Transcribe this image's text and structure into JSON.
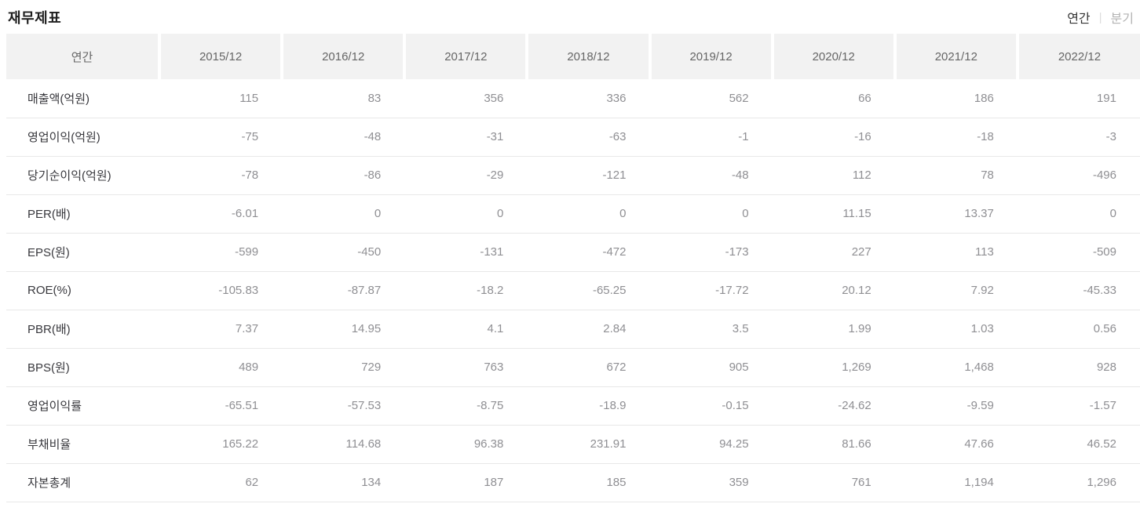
{
  "page": {
    "title": "재무제표"
  },
  "toggle": {
    "annual_label": "연간",
    "quarterly_label": "분기",
    "separator": "|",
    "active": "연간"
  },
  "colors": {
    "header_bg": "#f2f2f2",
    "header_text": "#666666",
    "label_text": "#38383d",
    "value_text": "#8f8f93",
    "row_border": "#e8e8e8",
    "toggle_active": "#333333",
    "toggle_inactive": "#b3b3b3"
  },
  "table": {
    "header": [
      "연간",
      "2015/12",
      "2016/12",
      "2017/12",
      "2018/12",
      "2019/12",
      "2020/12",
      "2021/12",
      "2022/12"
    ],
    "rows": [
      {
        "label": "매출액(억원)",
        "values": [
          "115",
          "83",
          "356",
          "336",
          "562",
          "66",
          "186",
          "191"
        ]
      },
      {
        "label": "영업이익(억원)",
        "values": [
          "-75",
          "-48",
          "-31",
          "-63",
          "-1",
          "-16",
          "-18",
          "-3"
        ]
      },
      {
        "label": "당기순이익(억원)",
        "values": [
          "-78",
          "-86",
          "-29",
          "-121",
          "-48",
          "112",
          "78",
          "-496"
        ]
      },
      {
        "label": "PER(배)",
        "values": [
          "-6.01",
          "0",
          "0",
          "0",
          "0",
          "11.15",
          "13.37",
          "0"
        ]
      },
      {
        "label": "EPS(원)",
        "values": [
          "-599",
          "-450",
          "-131",
          "-472",
          "-173",
          "227",
          "113",
          "-509"
        ]
      },
      {
        "label": "ROE(%)",
        "values": [
          "-105.83",
          "-87.87",
          "-18.2",
          "-65.25",
          "-17.72",
          "20.12",
          "7.92",
          "-45.33"
        ]
      },
      {
        "label": "PBR(배)",
        "values": [
          "7.37",
          "14.95",
          "4.1",
          "2.84",
          "3.5",
          "1.99",
          "1.03",
          "0.56"
        ]
      },
      {
        "label": "BPS(원)",
        "values": [
          "489",
          "729",
          "763",
          "672",
          "905",
          "1,269",
          "1,468",
          "928"
        ]
      },
      {
        "label": "영업이익률",
        "values": [
          "-65.51",
          "-57.53",
          "-8.75",
          "-18.9",
          "-0.15",
          "-24.62",
          "-9.59",
          "-1.57"
        ]
      },
      {
        "label": "부채비율",
        "values": [
          "165.22",
          "114.68",
          "96.38",
          "231.91",
          "94.25",
          "81.66",
          "47.66",
          "46.52"
        ]
      },
      {
        "label": "자본총계",
        "values": [
          "62",
          "134",
          "187",
          "185",
          "359",
          "761",
          "1,194",
          "1,296"
        ]
      }
    ]
  }
}
